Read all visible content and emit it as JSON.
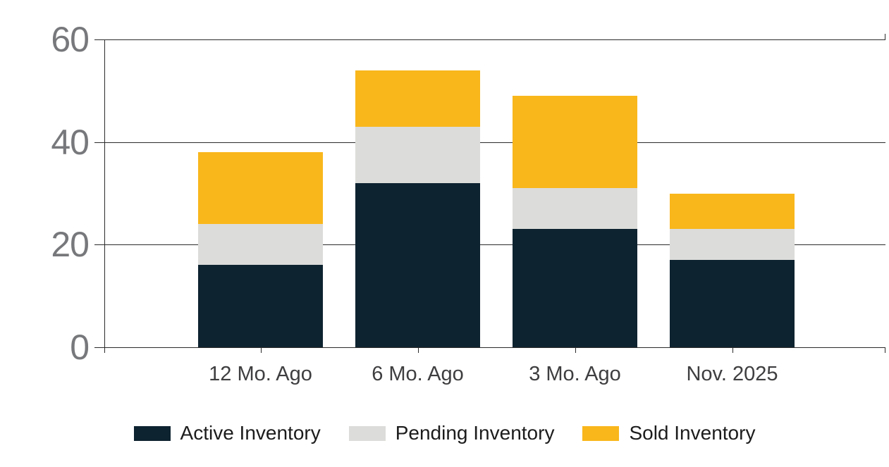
{
  "chart_data": {
    "type": "bar",
    "stacked": true,
    "categories": [
      "12 Mo. Ago",
      "6 Mo. Ago",
      "3 Mo. Ago",
      "Nov. 2025"
    ],
    "series": [
      {
        "name": "Active Inventory",
        "color": "#0e2330",
        "values": [
          16,
          32,
          23,
          17
        ]
      },
      {
        "name": "Pending Inventory",
        "color": "#dcdcda",
        "values": [
          8,
          11,
          8,
          6
        ]
      },
      {
        "name": "Sold Inventory",
        "color": "#f9b71c",
        "values": [
          14,
          11,
          18,
          7
        ]
      }
    ],
    "y_ticks": [
      0,
      20,
      40,
      60
    ],
    "ylim": [
      0,
      60
    ],
    "grid": "horizontal",
    "legend_position": "bottom"
  },
  "colors": {
    "axis": "#2b2b2b",
    "y_label": "#77787b",
    "x_label": "#3e3e40",
    "legend_text": "#1c1c1c",
    "background": "#ffffff"
  }
}
